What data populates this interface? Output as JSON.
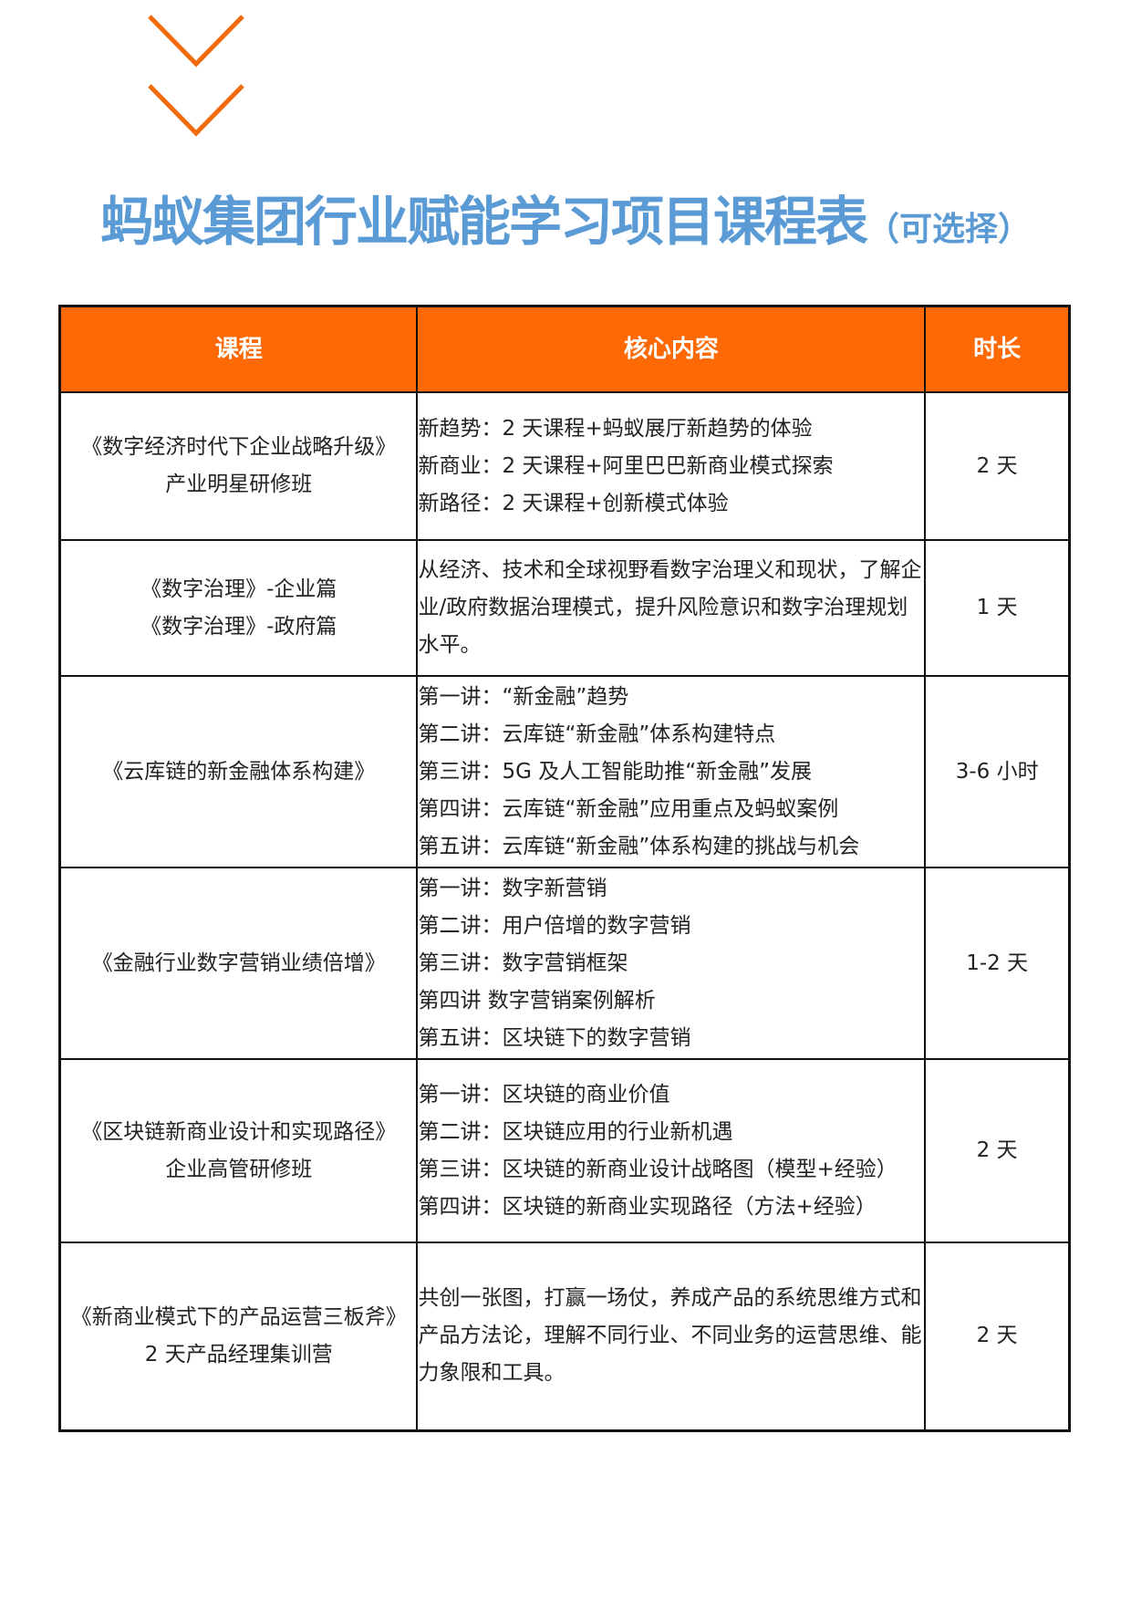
{
  "decor": {
    "chevron_color": "#f26b0f",
    "icon": "chevron-down-icon"
  },
  "title": {
    "main": "蚂蚁集团行业赋能学习项目课程表",
    "sub": "（可选择）",
    "color": "#5b9bd5"
  },
  "table": {
    "header_color": "#fd6a05",
    "headers": [
      "课程",
      "核心内容",
      "时长"
    ],
    "rows": [
      {
        "course": [
          "《数字经济时代下企业战略升级》",
          "产业明星研修班"
        ],
        "content": [
          "新趋势：2 天课程+蚂蚁展厅新趋势的体验",
          "新商业：2 天课程+阿里巴巴新商业模式探索",
          "新路径：2 天课程+创新模式体验"
        ],
        "duration": "2 天"
      },
      {
        "course": [
          "《数字治理》-企业篇",
          "《数字治理》-政府篇"
        ],
        "content": [
          "从经济、技术和全球视野看数字治理义和现状，了解企业/政府数据治理模式，提升风险意识和数字治理规划水平。"
        ],
        "duration": "1 天"
      },
      {
        "course": [
          "《云库链的新金融体系构建》"
        ],
        "content": [
          "第一讲：“新金融”趋势",
          "第二讲：云库链“新金融”体系构建特点",
          "第三讲：5G 及人工智能助推“新金融”发展",
          "第四讲：云库链“新金融”应用重点及蚂蚁案例",
          "第五讲：云库链“新金融”体系构建的挑战与机会"
        ],
        "duration": "3-6 小时"
      },
      {
        "course": [
          "《金融行业数字营销业绩倍增》"
        ],
        "content": [
          "第一讲：数字新营销",
          "第二讲：用户倍增的数字营销",
          "第三讲：数字营销框架",
          "第四讲 数字营销案例解析",
          "第五讲：区块链下的数字营销"
        ],
        "duration": "1-2 天"
      },
      {
        "course": [
          "《区块链新商业设计和实现路径》",
          "企业高管研修班"
        ],
        "content": [
          "第一讲：区块链的商业价值",
          "第二讲：区块链应用的行业新机遇",
          "第三讲：区块链的新商业设计战略图（模型+经验）",
          "第四讲：区块链的新商业实现路径（方法+经验）"
        ],
        "duration": "2 天"
      },
      {
        "course": [
          "《新商业模式下的产品运营三板斧》",
          "2 天产品经理集训营"
        ],
        "content": [
          "共创一张图，打赢一场仗，养成产品的系统思维方式和产品方法论，理解不同行业、不同业务的运营思维、能力象限和工具。"
        ],
        "duration": "2 天"
      }
    ]
  }
}
